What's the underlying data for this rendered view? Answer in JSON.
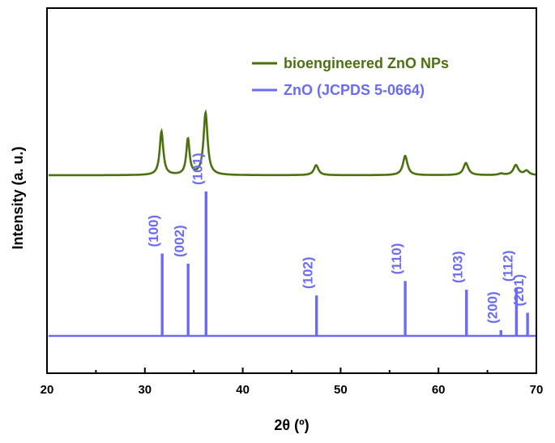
{
  "chart_data": {
    "type": "line",
    "title": "",
    "xlabel": "2θ (º)",
    "ylabel": "Intensity (a. u.)",
    "xlim": [
      20,
      70
    ],
    "xticks": [
      "20",
      "30",
      "40",
      "50",
      "60",
      "70"
    ],
    "yticks": [],
    "grid": false,
    "legend_position": "top-right",
    "colors": {
      "sample": "#4d7012",
      "reference": "#6b6bf5",
      "axis": "#000000"
    },
    "series": [
      {
        "name": "bioengineered ZnO NPs",
        "kind": "profile",
        "baseline": 18,
        "peaks": [
          {
            "x": 31.7,
            "height": 61,
            "width": 0.22
          },
          {
            "x": 34.4,
            "height": 50,
            "width": 0.2
          },
          {
            "x": 36.2,
            "height": 87,
            "width": 0.25
          },
          {
            "x": 47.5,
            "height": 14,
            "width": 0.28
          },
          {
            "x": 56.6,
            "height": 27,
            "width": 0.28
          },
          {
            "x": 62.8,
            "height": 17,
            "width": 0.3
          },
          {
            "x": 66.4,
            "height": 2,
            "width": 0.3
          },
          {
            "x": 67.9,
            "height": 14,
            "width": 0.3
          },
          {
            "x": 69.0,
            "height": 6,
            "width": 0.3
          }
        ]
      },
      {
        "name": "ZnO (JCPDS 5-0664)",
        "kind": "stick",
        "baseline": 0,
        "sticks": [
          {
            "x": 31.77,
            "value": 57,
            "label": "(100)"
          },
          {
            "x": 34.42,
            "value": 50,
            "label": "(002)"
          },
          {
            "x": 36.25,
            "value": 100,
            "label": "(101)"
          },
          {
            "x": 47.54,
            "value": 28,
            "label": "(102)"
          },
          {
            "x": 56.6,
            "value": 38,
            "label": "(110)"
          },
          {
            "x": 62.86,
            "value": 32,
            "label": "(103)"
          },
          {
            "x": 66.38,
            "value": 4,
            "label": "(200)"
          },
          {
            "x": 67.96,
            "value": 33,
            "label": "(112)"
          },
          {
            "x": 69.1,
            "value": 16,
            "label": "(201)"
          }
        ]
      }
    ]
  }
}
